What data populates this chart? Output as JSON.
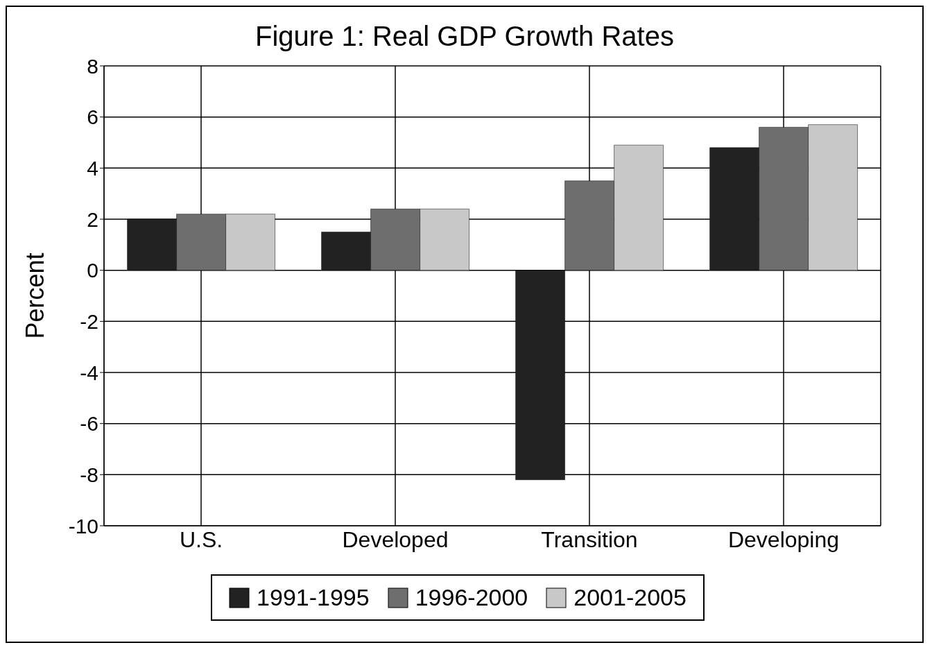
{
  "chart_data": {
    "type": "bar",
    "title": "Figure 1: Real GDP Growth Rates",
    "ylabel": "Percent",
    "categories": [
      "U.S.",
      "Developed",
      "Transition",
      "Developing"
    ],
    "series": [
      {
        "name": "1991-1995",
        "color": "#222222",
        "values": [
          2.0,
          1.5,
          -8.2,
          4.8
        ]
      },
      {
        "name": "1996-2000",
        "color": "#6e6e6e",
        "values": [
          2.2,
          2.4,
          3.5,
          5.6
        ]
      },
      {
        "name": "2001-2005",
        "color": "#c8c8c8",
        "values": [
          2.2,
          2.4,
          4.9,
          5.7
        ]
      }
    ],
    "ylim": [
      -10,
      8
    ],
    "yticks": [
      -10,
      -8,
      -6,
      -4,
      -2,
      0,
      2,
      4,
      6,
      8
    ],
    "grid": true,
    "legend": "bottom"
  }
}
